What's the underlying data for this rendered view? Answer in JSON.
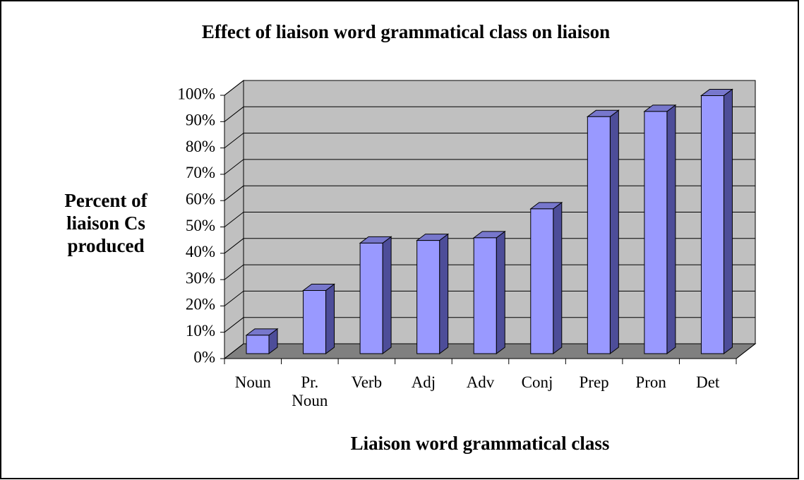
{
  "chart_data": {
    "type": "bar",
    "title": "Effect of liaison word grammatical class on liaison",
    "x_label": "Liaison word grammatical class",
    "y_label": "Percent of liaison Cs produced",
    "categories": [
      "Noun",
      "Pr. Noun",
      "Verb",
      "Adj",
      "Adv",
      "Conj",
      "Prep",
      "Pron",
      "Det"
    ],
    "values": [
      7,
      24,
      42,
      43,
      44,
      55,
      90,
      92,
      98
    ],
    "color": "#9999ff",
    "ylim": [
      0,
      100
    ],
    "yticks": [
      {
        "value": 0,
        "label": "0%"
      },
      {
        "value": 10,
        "label": "10%"
      },
      {
        "value": 20,
        "label": "20%"
      },
      {
        "value": 30,
        "label": "30%"
      },
      {
        "value": 40,
        "label": "40%"
      },
      {
        "value": 50,
        "label": "50%"
      },
      {
        "value": 60,
        "label": "60%"
      },
      {
        "value": 70,
        "label": "70%"
      },
      {
        "value": 80,
        "label": "80%"
      },
      {
        "value": 90,
        "label": "90%"
      },
      {
        "value": 100,
        "label": "100%"
      }
    ],
    "grid": true
  }
}
